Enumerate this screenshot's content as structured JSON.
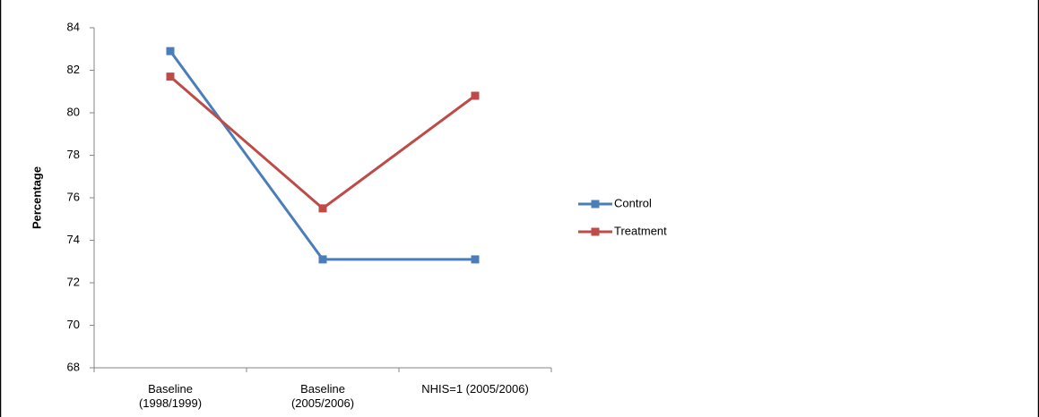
{
  "chart_data": {
    "type": "line",
    "y_label": "Percentage",
    "categories": [
      "Baseline\n(1998/1999)",
      "Baseline\n(2005/2006)",
      "NHIS=1 (2005/2006)"
    ],
    "series": [
      {
        "name": "Control",
        "color": "#4a7ebb",
        "values": [
          82.9,
          73.1,
          73.1
        ]
      },
      {
        "name": "Treatment",
        "color": "#be4b48",
        "values": [
          81.7,
          75.5,
          80.8
        ]
      }
    ],
    "ylim": [
      68,
      84
    ],
    "yticks": [
      68,
      70,
      72,
      74,
      76,
      78,
      80,
      82,
      84
    ],
    "grid": false,
    "legend": "right"
  }
}
